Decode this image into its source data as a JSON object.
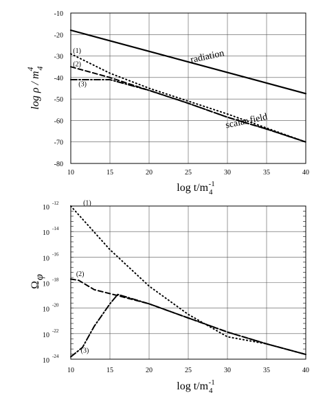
{
  "chart_data": [
    {
      "type": "line",
      "xlabel": "log  t/m",
      "xlabel_sub": "4",
      "xlabel_sup": "-1",
      "ylabel": "log ρ / m",
      "ylabel_sub": "4",
      "ylabel_sup": "4",
      "xlim": [
        10,
        40
      ],
      "ylim": [
        -80,
        -10
      ],
      "grid": true,
      "x_ticks": [
        "10",
        "15",
        "20",
        "25",
        "30",
        "35",
        "40"
      ],
      "y_ticks": [
        "-10",
        "-20",
        "-30",
        "-40",
        "-50",
        "-60",
        "-70",
        "-80"
      ],
      "series": [
        {
          "name": "radiation",
          "style": "solid",
          "points": [
            [
              10,
              -18
            ],
            [
              40,
              -47.5
            ]
          ]
        },
        {
          "name": "(1)",
          "style": "dotted",
          "points": [
            [
              10,
              -29
            ],
            [
              15,
              -38
            ],
            [
              20,
              -45
            ],
            [
              25,
              -51
            ],
            [
              30,
              -57
            ],
            [
              35,
              -63.5
            ],
            [
              40,
              -70
            ]
          ]
        },
        {
          "name": "(2)",
          "style": "dashed",
          "points": [
            [
              10,
              -35
            ],
            [
              15,
              -40
            ],
            [
              20,
              -46
            ],
            [
              25,
              -52
            ],
            [
              30,
              -58.5
            ],
            [
              35,
              -64
            ],
            [
              40,
              -70
            ]
          ]
        },
        {
          "name": "(3)",
          "style": "dashdot",
          "points": [
            [
              10,
              -41
            ],
            [
              15,
              -41
            ],
            [
              16,
              -42
            ],
            [
              20,
              -46
            ],
            [
              25,
              -52
            ],
            [
              30,
              -58.5
            ],
            [
              35,
              -64
            ],
            [
              40,
              -70
            ]
          ]
        }
      ],
      "annotations": [
        {
          "text": "radiation",
          "x": 27.5,
          "y": -31.5,
          "rotate": -12,
          "size": 14
        },
        {
          "text": "scalar field",
          "x": 32.5,
          "y": -61.5,
          "rotate": -12,
          "size": 14
        },
        {
          "text": "(1)",
          "x": 10.8,
          "y": -28.5,
          "rotate": 0,
          "size": 10
        },
        {
          "text": "(2)",
          "x": 10.8,
          "y": -34.8,
          "rotate": 0,
          "size": 10
        },
        {
          "text": "(3)",
          "x": 11.5,
          "y": -44,
          "rotate": 0,
          "size": 10
        }
      ]
    },
    {
      "type": "line",
      "xlabel": "log  t/m",
      "xlabel_sub": "4",
      "xlabel_sup": "-1",
      "ylabel": "Ω",
      "ylabel_sub": "φ",
      "xlim": [
        10,
        40
      ],
      "ylim": [
        -24,
        -11
      ],
      "grid": true,
      "x_ticks": [
        "10",
        "15",
        "20",
        "25",
        "30",
        "35",
        "40"
      ],
      "y_ticks": [
        {
          "base": "10",
          "exp": "-12"
        },
        {
          "base": "10",
          "exp": "-14"
        },
        {
          "base": "10",
          "exp": "-16"
        },
        {
          "base": "10",
          "exp": "-18"
        },
        {
          "base": "10",
          "exp": "-20"
        },
        {
          "base": "10",
          "exp": "-22"
        },
        {
          "base": "10",
          "exp": "-24"
        }
      ],
      "series": [
        {
          "name": "(1)",
          "style": "dotted",
          "points": [
            [
              10,
              -11
            ],
            [
              15,
              -14.7
            ],
            [
              20,
              -17.8
            ],
            [
              25,
              -20.2
            ],
            [
              30,
              -22.1
            ],
            [
              35,
              -22.7
            ],
            [
              40,
              -23.6
            ]
          ]
        },
        {
          "name": "(2)",
          "style": "dashed",
          "points": [
            [
              10,
              -17.2
            ],
            [
              11,
              -17.3
            ],
            [
              13,
              -18.1
            ],
            [
              16,
              -18.6
            ],
            [
              20,
              -19.3
            ],
            [
              25,
              -20.5
            ],
            [
              30,
              -21.7
            ],
            [
              35,
              -22.7
            ],
            [
              40,
              -23.6
            ]
          ]
        },
        {
          "name": "(3)",
          "style": "dashdot",
          "points": [
            [
              10,
              -23.8
            ],
            [
              11.5,
              -23
            ],
            [
              13,
              -21.2
            ],
            [
              15,
              -19.3
            ],
            [
              16,
              -18.5
            ],
            [
              20,
              -19.3
            ],
            [
              25,
              -20.5
            ],
            [
              30,
              -21.7
            ],
            [
              35,
              -22.7
            ],
            [
              40,
              -23.6
            ]
          ]
        }
      ],
      "annotations": [
        {
          "text": "(1)",
          "x": 12.1,
          "y": -10.9,
          "rotate": 0,
          "size": 10
        },
        {
          "text": "(2)",
          "x": 11.2,
          "y": -16.95,
          "rotate": 0,
          "size": 10
        },
        {
          "text": "(3)",
          "x": 11.8,
          "y": -23.45,
          "rotate": 0,
          "size": 10
        }
      ]
    }
  ]
}
